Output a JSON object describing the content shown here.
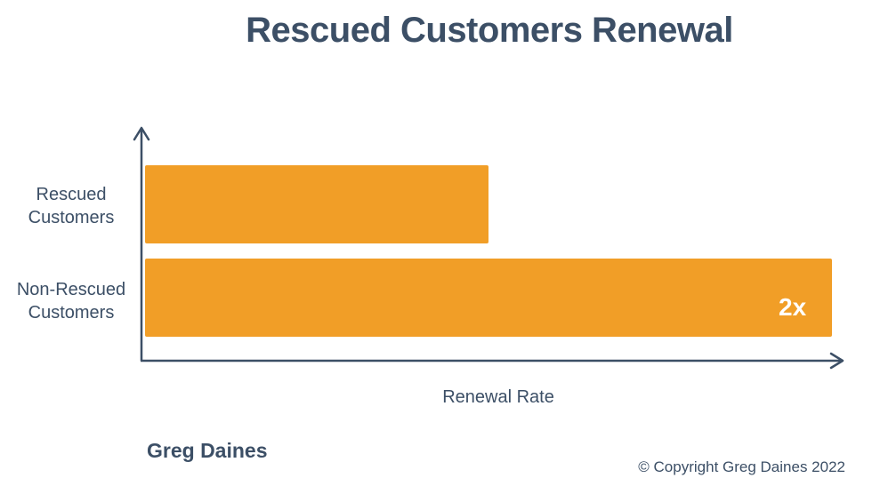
{
  "header": {
    "title": "Rescued Customers Renewal"
  },
  "chart_data": {
    "type": "bar",
    "orientation": "horizontal",
    "title": "Rescued Customers Renewal",
    "xlabel": "Renewal Rate",
    "ylabel": "",
    "categories": [
      "Rescued Customers",
      "Non-Rescued Customers"
    ],
    "category_lines": [
      [
        "Rescued",
        "Customers"
      ],
      [
        "Non-Rescued",
        "Customers"
      ]
    ],
    "values": [
      1,
      2
    ],
    "xlim": [
      0,
      2
    ],
    "annotations": [
      {
        "category": "Non-Rescued Customers",
        "text": "2x"
      }
    ],
    "bar_color": "#f19e27",
    "axis_color": "#3c4f66",
    "grid": false,
    "tick_labels_shown": false
  },
  "footer": {
    "author": "Greg Daines",
    "copyright": "© Copyright Greg Daines 2022"
  }
}
